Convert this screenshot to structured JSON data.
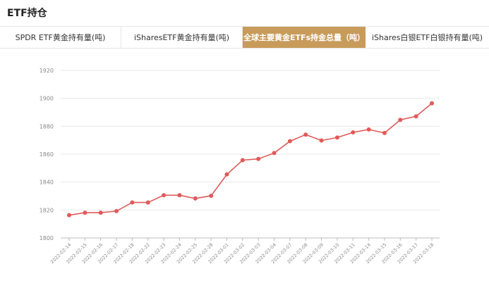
{
  "header": {
    "title": "ETF持仓"
  },
  "tabs": [
    {
      "label": "SPDR ETF黄金持有量(吨)",
      "active": false
    },
    {
      "label": "iSharesETF黄金持有量(吨)",
      "active": false
    },
    {
      "label": "全球主要黄金ETFs持金总量（吨）",
      "active": true
    },
    {
      "label": "iShares白银ETF白银持有量(吨)",
      "active": false
    }
  ],
  "colors": {
    "accent": "#c89b5b",
    "series": "#e05a5a"
  },
  "chart_data": {
    "type": "line",
    "x": [
      "2022-02-14",
      "2022-02-15",
      "2022-02-16",
      "2022-02-17",
      "2022-02-18",
      "2022-02-22",
      "2022-02-23",
      "2022-02-24",
      "2022-02-25",
      "2022-02-28",
      "2022-03-01",
      "2022-03-02",
      "2022-03-03",
      "2022-03-04",
      "2022-03-07",
      "2022-03-08",
      "2022-03-09",
      "2022-03-10",
      "2022-03-11",
      "2022-03-14",
      "2022-03-15",
      "2022-03-16",
      "2022-03-17",
      "2022-03-18"
    ],
    "series": [
      {
        "values": [
          1816.3,
          1818.1,
          1818.1,
          1819.2,
          1825.4,
          1825.4,
          1830.6,
          1830.6,
          1828.3,
          1830.2,
          1845.5,
          1855.7,
          1856.6,
          1860.8,
          1869.3,
          1874.0,
          1869.8,
          1871.9,
          1875.6,
          1877.7,
          1875.2,
          1884.6,
          1887.1,
          1896.4
        ]
      }
    ],
    "yticks": [
      1800,
      1820,
      1840,
      1860,
      1880,
      1900,
      1920
    ],
    "ylim": [
      1800,
      1920
    ],
    "grid": true,
    "title": "",
    "xlabel": "",
    "ylabel": ""
  }
}
